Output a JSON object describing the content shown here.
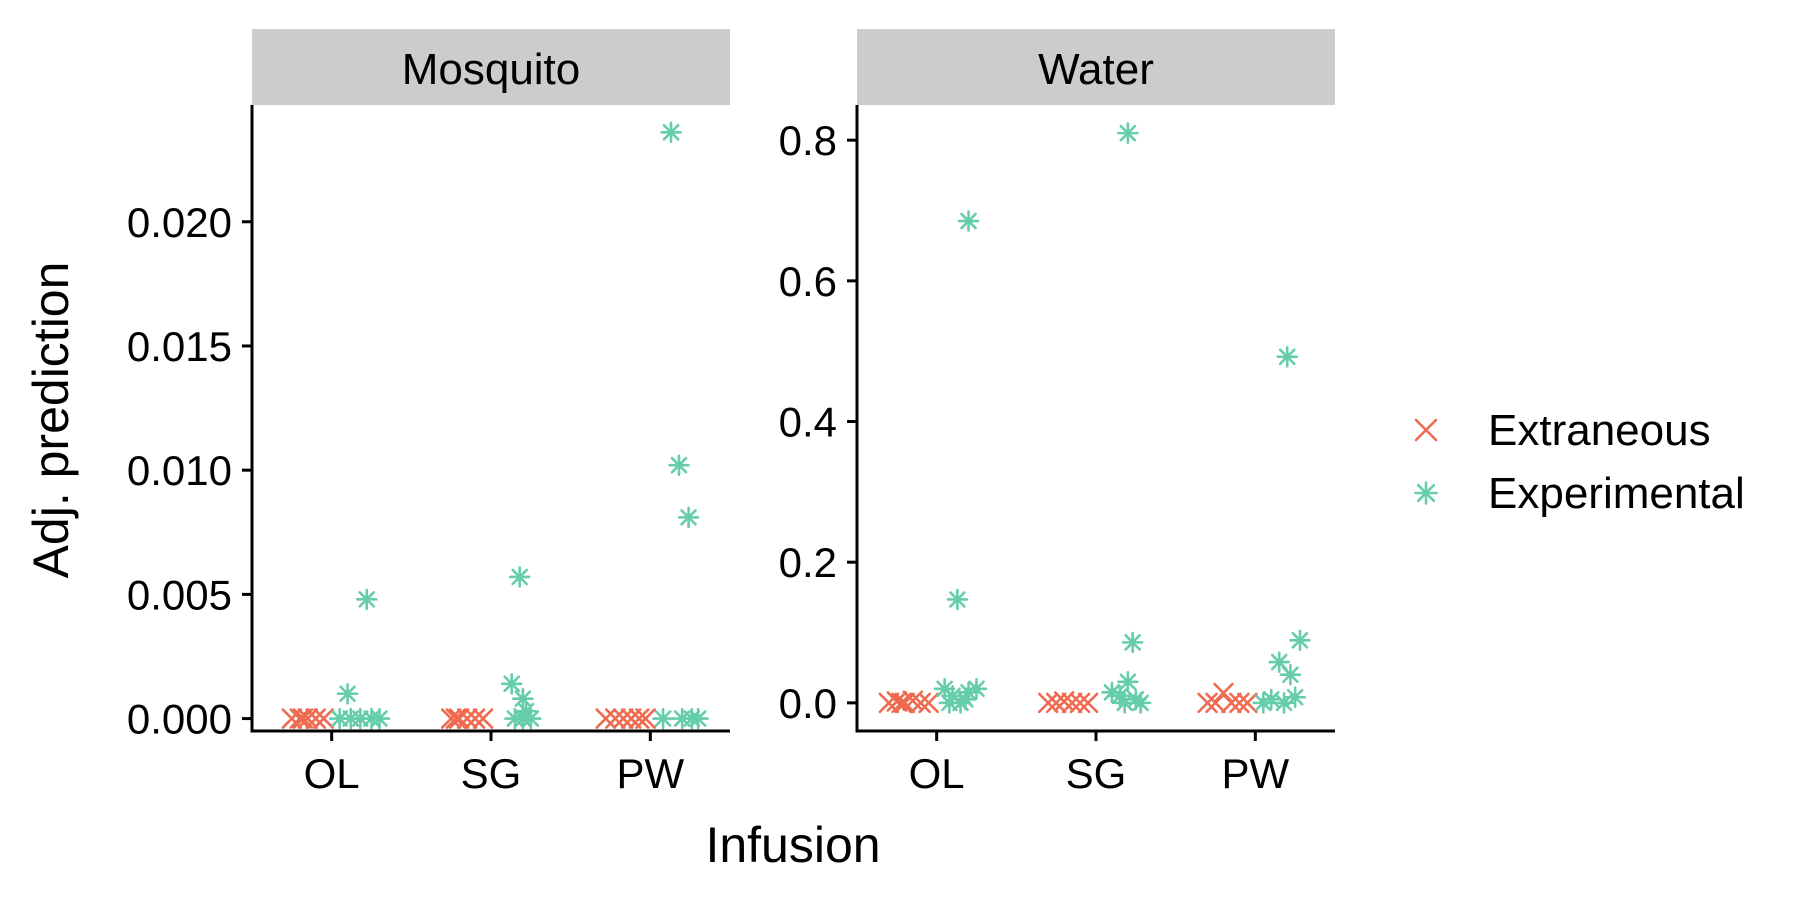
{
  "chart_data": {
    "type": "scatter",
    "xlabel": "Infusion",
    "ylabel": "Adj. prediction",
    "categories": [
      "OL",
      "SG",
      "PW"
    ],
    "legend": {
      "position": "right",
      "entries": [
        {
          "name": "Extraneous",
          "symbol": "x",
          "color": "#ee6a50"
        },
        {
          "name": "Experimental",
          "symbol": "asterisk",
          "color": "#66cdaa"
        }
      ]
    },
    "panels": [
      {
        "strip": "Mosquito",
        "ylim": [
          -0.0005,
          0.0247
        ],
        "yticks": [
          0.0,
          0.005,
          0.01,
          0.015,
          0.02
        ],
        "yticklabels": [
          "0.000",
          "0.005",
          "0.010",
          "0.015",
          "0.020"
        ],
        "series": [
          {
            "name": "Extraneous",
            "points": [
              {
                "cat": "OL",
                "offset": -0.25,
                "y": 0.0
              },
              {
                "cat": "OL",
                "offset": -0.2,
                "y": 0.0
              },
              {
                "cat": "OL",
                "offset": -0.15,
                "y": 0.0
              },
              {
                "cat": "OL",
                "offset": -0.1,
                "y": 0.0
              },
              {
                "cat": "OL",
                "offset": -0.05,
                "y": 0.0
              },
              {
                "cat": "OL",
                "offset": -0.18,
                "y": 0.0
              },
              {
                "cat": "SG",
                "offset": -0.25,
                "y": 0.0
              },
              {
                "cat": "SG",
                "offset": -0.2,
                "y": 0.0
              },
              {
                "cat": "SG",
                "offset": -0.15,
                "y": 0.0
              },
              {
                "cat": "SG",
                "offset": -0.1,
                "y": 0.0
              },
              {
                "cat": "SG",
                "offset": -0.05,
                "y": 0.0
              },
              {
                "cat": "SG",
                "offset": -0.22,
                "y": 0.0
              },
              {
                "cat": "PW",
                "offset": -0.28,
                "y": 0.0
              },
              {
                "cat": "PW",
                "offset": -0.22,
                "y": 0.0
              },
              {
                "cat": "PW",
                "offset": -0.17,
                "y": 0.0
              },
              {
                "cat": "PW",
                "offset": -0.12,
                "y": 0.0
              },
              {
                "cat": "PW",
                "offset": -0.07,
                "y": 0.0
              },
              {
                "cat": "PW",
                "offset": -0.03,
                "y": 0.0
              }
            ]
          },
          {
            "name": "Experimental",
            "points": [
              {
                "cat": "OL",
                "offset": 0.22,
                "y": 0.0048
              },
              {
                "cat": "OL",
                "offset": 0.1,
                "y": 0.001
              },
              {
                "cat": "OL",
                "offset": 0.05,
                "y": 0.0
              },
              {
                "cat": "OL",
                "offset": 0.12,
                "y": 0.0
              },
              {
                "cat": "OL",
                "offset": 0.18,
                "y": 0.0
              },
              {
                "cat": "OL",
                "offset": 0.25,
                "y": 0.0
              },
              {
                "cat": "OL",
                "offset": 0.3,
                "y": 0.0
              },
              {
                "cat": "SG",
                "offset": 0.18,
                "y": 0.0057
              },
              {
                "cat": "SG",
                "offset": 0.13,
                "y": 0.0014
              },
              {
                "cat": "SG",
                "offset": 0.2,
                "y": 0.0008
              },
              {
                "cat": "SG",
                "offset": 0.22,
                "y": 0.0003
              },
              {
                "cat": "SG",
                "offset": 0.15,
                "y": 0.0
              },
              {
                "cat": "SG",
                "offset": 0.2,
                "y": 0.0
              },
              {
                "cat": "SG",
                "offset": 0.25,
                "y": 0.0
              },
              {
                "cat": "PW",
                "offset": 0.13,
                "y": 0.0236
              },
              {
                "cat": "PW",
                "offset": 0.18,
                "y": 0.0102
              },
              {
                "cat": "PW",
                "offset": 0.24,
                "y": 0.0081
              },
              {
                "cat": "PW",
                "offset": 0.08,
                "y": 0.0
              },
              {
                "cat": "PW",
                "offset": 0.2,
                "y": 0.0
              },
              {
                "cat": "PW",
                "offset": 0.26,
                "y": 0.0
              },
              {
                "cat": "PW",
                "offset": 0.3,
                "y": 0.0
              }
            ]
          }
        ]
      },
      {
        "strip": "Water",
        "ylim": [
          -0.04,
          0.85
        ],
        "yticks": [
          0.0,
          0.2,
          0.4,
          0.6,
          0.8
        ],
        "yticklabels": [
          "0.0",
          "0.2",
          "0.4",
          "0.6",
          "0.8"
        ],
        "series": [
          {
            "name": "Extraneous",
            "points": [
              {
                "cat": "OL",
                "offset": -0.3,
                "y": 0.0
              },
              {
                "cat": "OL",
                "offset": -0.25,
                "y": 0.002
              },
              {
                "cat": "OL",
                "offset": -0.2,
                "y": 0.0
              },
              {
                "cat": "OL",
                "offset": -0.15,
                "y": 0.003
              },
              {
                "cat": "OL",
                "offset": -0.1,
                "y": 0.0
              },
              {
                "cat": "OL",
                "offset": -0.05,
                "y": 0.0
              },
              {
                "cat": "OL",
                "offset": -0.22,
                "y": 0.0
              },
              {
                "cat": "SG",
                "offset": -0.3,
                "y": 0.0
              },
              {
                "cat": "SG",
                "offset": -0.25,
                "y": 0.0
              },
              {
                "cat": "SG",
                "offset": -0.2,
                "y": 0.002
              },
              {
                "cat": "SG",
                "offset": -0.15,
                "y": 0.0
              },
              {
                "cat": "SG",
                "offset": -0.1,
                "y": 0.0
              },
              {
                "cat": "SG",
                "offset": -0.05,
                "y": 0.0
              },
              {
                "cat": "PW",
                "offset": -0.3,
                "y": 0.0
              },
              {
                "cat": "PW",
                "offset": -0.25,
                "y": 0.0
              },
              {
                "cat": "PW",
                "offset": -0.2,
                "y": 0.014
              },
              {
                "cat": "PW",
                "offset": -0.15,
                "y": 0.0
              },
              {
                "cat": "PW",
                "offset": -0.1,
                "y": 0.0
              },
              {
                "cat": "PW",
                "offset": -0.05,
                "y": 0.0
              }
            ]
          },
          {
            "name": "Experimental",
            "points": [
              {
                "cat": "OL",
                "offset": 0.2,
                "y": 0.685
              },
              {
                "cat": "OL",
                "offset": 0.13,
                "y": 0.147
              },
              {
                "cat": "OL",
                "offset": 0.05,
                "y": 0.02
              },
              {
                "cat": "OL",
                "offset": 0.1,
                "y": 0.01
              },
              {
                "cat": "OL",
                "offset": 0.15,
                "y": 0.0
              },
              {
                "cat": "OL",
                "offset": 0.2,
                "y": 0.015
              },
              {
                "cat": "OL",
                "offset": 0.25,
                "y": 0.02
              },
              {
                "cat": "OL",
                "offset": 0.08,
                "y": 0.0
              },
              {
                "cat": "OL",
                "offset": 0.18,
                "y": 0.005
              },
              {
                "cat": "SG",
                "offset": 0.2,
                "y": 0.81
              },
              {
                "cat": "SG",
                "offset": 0.23,
                "y": 0.086
              },
              {
                "cat": "SG",
                "offset": 0.2,
                "y": 0.03
              },
              {
                "cat": "SG",
                "offset": 0.1,
                "y": 0.015
              },
              {
                "cat": "SG",
                "offset": 0.15,
                "y": 0.01
              },
              {
                "cat": "SG",
                "offset": 0.25,
                "y": 0.005
              },
              {
                "cat": "SG",
                "offset": 0.18,
                "y": 0.0
              },
              {
                "cat": "SG",
                "offset": 0.28,
                "y": 0.0
              },
              {
                "cat": "PW",
                "offset": 0.2,
                "y": 0.492
              },
              {
                "cat": "PW",
                "offset": 0.28,
                "y": 0.089
              },
              {
                "cat": "PW",
                "offset": 0.15,
                "y": 0.058
              },
              {
                "cat": "PW",
                "offset": 0.22,
                "y": 0.04
              },
              {
                "cat": "PW",
                "offset": 0.1,
                "y": 0.005
              },
              {
                "cat": "PW",
                "offset": 0.18,
                "y": 0.0
              },
              {
                "cat": "PW",
                "offset": 0.25,
                "y": 0.008
              },
              {
                "cat": "PW",
                "offset": 0.05,
                "y": 0.0
              }
            ]
          }
        ]
      }
    ]
  }
}
